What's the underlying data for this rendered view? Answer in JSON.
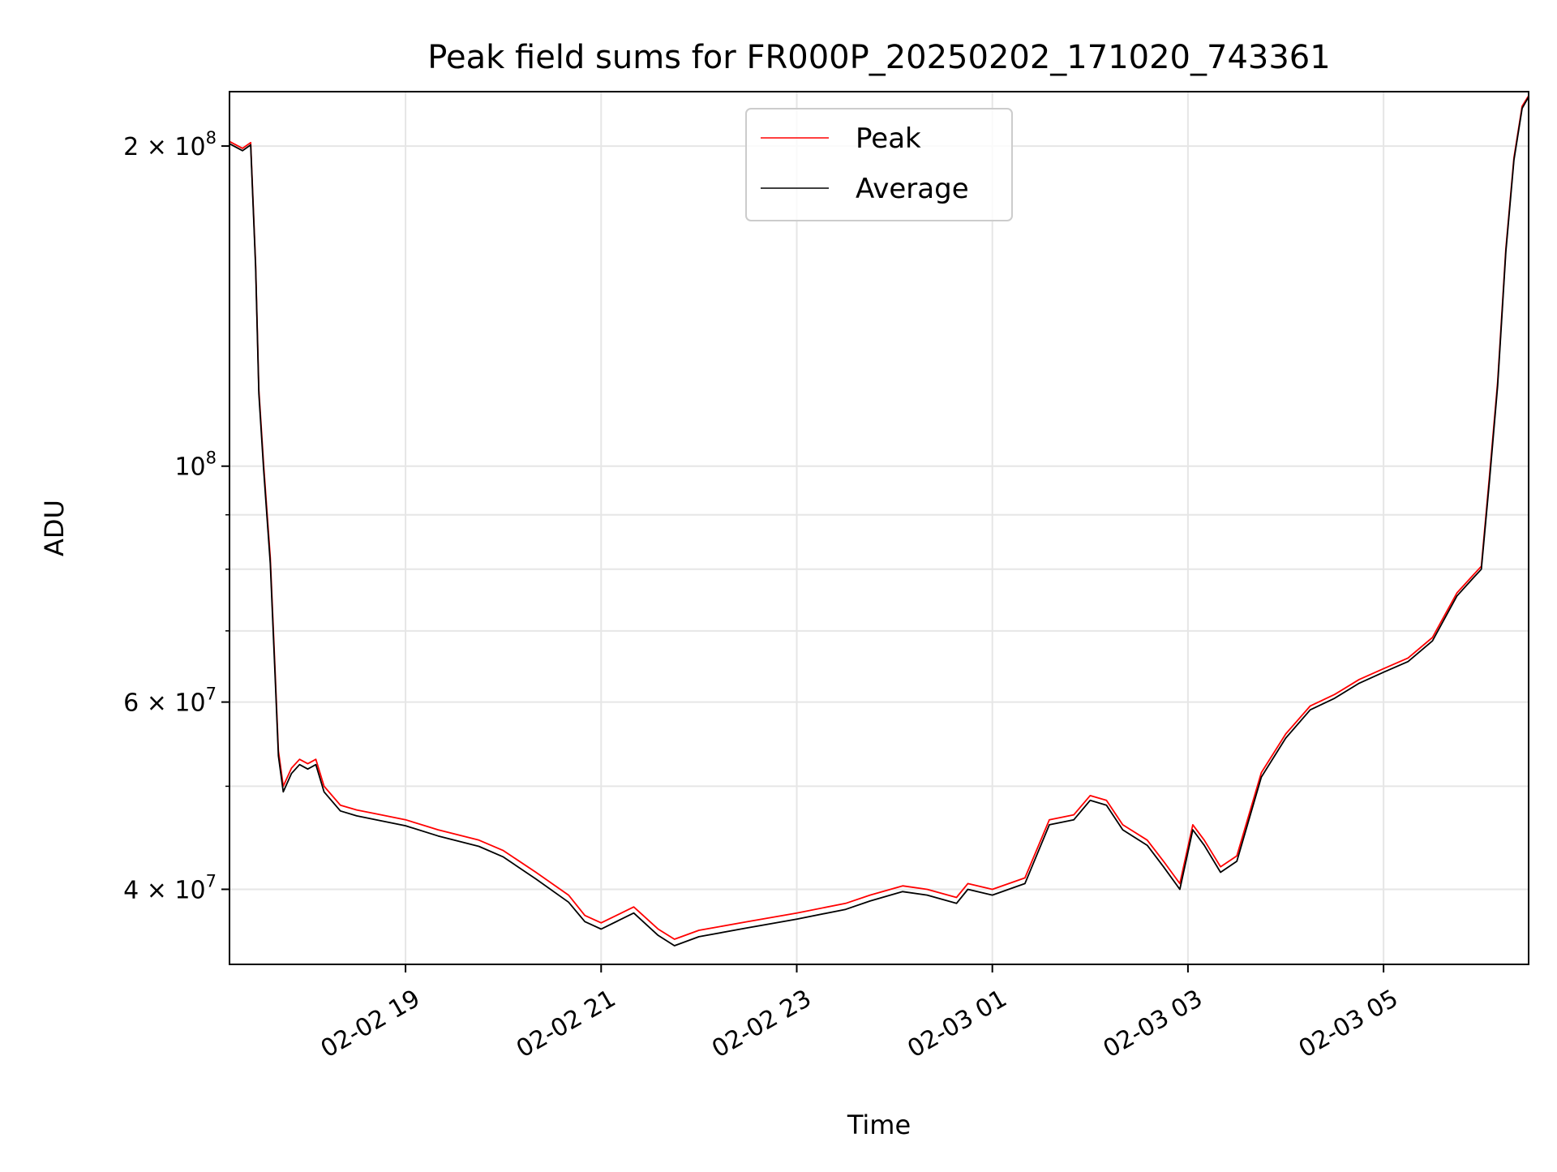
{
  "chart_data": {
    "type": "line",
    "title": "Peak field sums for FR000P_20250202_171020_743361",
    "xlabel": "Time",
    "ylabel": "ADU",
    "x_axis": {
      "kind": "datetime",
      "range": [
        "2025-02-02 17:12",
        "2025-02-03 06:29"
      ],
      "ticks": [
        {
          "value": "2025-02-02 19:00",
          "label": "02-02 19"
        },
        {
          "value": "2025-02-02 21:00",
          "label": "02-02 21"
        },
        {
          "value": "2025-02-02 23:00",
          "label": "02-02 23"
        },
        {
          "value": "2025-02-03 01:00",
          "label": "02-03 01"
        },
        {
          "value": "2025-02-03 03:00",
          "label": "02-03 03"
        },
        {
          "value": "2025-02-03 05:00",
          "label": "02-03 05"
        }
      ]
    },
    "y_axis": {
      "scale": "log",
      "range": [
        34000000,
        225000000
      ],
      "major_ticks": [
        {
          "value": 40000000,
          "label_base": "4 × 10",
          "label_exp": "7"
        },
        {
          "value": 60000000,
          "label_base": "6 × 10",
          "label_exp": "7"
        },
        {
          "value": 100000000,
          "label_base": "10",
          "label_exp": "8"
        },
        {
          "value": 200000000,
          "label_base": "2 × 10",
          "label_exp": "8"
        }
      ],
      "minor_ticks": [
        50000000,
        70000000,
        80000000,
        90000000
      ]
    },
    "grid": true,
    "legend": {
      "placement": "upper-center"
    },
    "x": [
      "2025-02-02 17:12",
      "2025-02-02 17:20",
      "2025-02-02 17:25",
      "2025-02-02 17:28",
      "2025-02-02 17:30",
      "2025-02-02 17:33",
      "2025-02-02 17:37",
      "2025-02-02 17:40",
      "2025-02-02 17:42",
      "2025-02-02 17:45",
      "2025-02-02 17:50",
      "2025-02-02 17:55",
      "2025-02-02 18:00",
      "2025-02-02 18:05",
      "2025-02-02 18:10",
      "2025-02-02 18:20",
      "2025-02-02 18:30",
      "2025-02-02 18:45",
      "2025-02-02 19:00",
      "2025-02-02 19:20",
      "2025-02-02 19:45",
      "2025-02-02 20:00",
      "2025-02-02 20:20",
      "2025-02-02 20:40",
      "2025-02-02 20:50",
      "2025-02-02 21:00",
      "2025-02-02 21:20",
      "2025-02-02 21:35",
      "2025-02-02 21:45",
      "2025-02-02 22:00",
      "2025-02-02 22:30",
      "2025-02-02 23:00",
      "2025-02-02 23:30",
      "2025-02-02 23:45",
      "2025-02-03 00:05",
      "2025-02-03 00:20",
      "2025-02-03 00:38",
      "2025-02-03 00:45",
      "2025-02-03 01:00",
      "2025-02-03 01:20",
      "2025-02-03 01:35",
      "2025-02-03 01:50",
      "2025-02-03 02:00",
      "2025-02-03 02:10",
      "2025-02-03 02:20",
      "2025-02-03 02:35",
      "2025-02-03 02:45",
      "2025-02-03 02:55",
      "2025-02-03 03:03",
      "2025-02-03 03:10",
      "2025-02-03 03:20",
      "2025-02-03 03:30",
      "2025-02-03 03:45",
      "2025-02-03 04:00",
      "2025-02-03 04:15",
      "2025-02-03 04:30",
      "2025-02-03 04:45",
      "2025-02-03 05:00",
      "2025-02-03 05:15",
      "2025-02-03 05:30",
      "2025-02-03 05:45",
      "2025-02-03 05:55",
      "2025-02-03 06:00",
      "2025-02-03 06:05",
      "2025-02-03 06:10",
      "2025-02-03 06:15",
      "2025-02-03 06:20",
      "2025-02-03 06:25",
      "2025-02-03 06:29"
    ],
    "series": [
      {
        "name": "Peak",
        "color": "#ff0000",
        "values": [
          202000000,
          199000000,
          201500000,
          155000000,
          118000000,
          100000000,
          82000000,
          64000000,
          54000000,
          50000000,
          52000000,
          53000000,
          52500000,
          53000000,
          50000000,
          48000000,
          47500000,
          47000000,
          46500000,
          45500000,
          44500000,
          43500000,
          41500000,
          39500000,
          37800000,
          37200000,
          38500000,
          36700000,
          35900000,
          36600000,
          37300000,
          38000000,
          38800000,
          39500000,
          40300000,
          40000000,
          39300000,
          40500000,
          40000000,
          41000000,
          46500000,
          47000000,
          49000000,
          48500000,
          46000000,
          44500000,
          42500000,
          40500000,
          46000000,
          44500000,
          42000000,
          43000000,
          51500000,
          56000000,
          59500000,
          61000000,
          63000000,
          64500000,
          66000000,
          69000000,
          76000000,
          79000000,
          80500000,
          98000000,
          120000000,
          160000000,
          195000000,
          218000000,
          223000000
        ]
      },
      {
        "name": "Average",
        "color": "#000000",
        "values": [
          201000000,
          198000000,
          200500000,
          154000000,
          117000000,
          99000000,
          81000000,
          63300000,
          53400000,
          49400000,
          51400000,
          52400000,
          51900000,
          52400000,
          49400000,
          47400000,
          46900000,
          46400000,
          45900000,
          44900000,
          43900000,
          42900000,
          40900000,
          38900000,
          37300000,
          36700000,
          38000000,
          36200000,
          35400000,
          36100000,
          36800000,
          37500000,
          38300000,
          39000000,
          39800000,
          39500000,
          38800000,
          40000000,
          39500000,
          40500000,
          46000000,
          46500000,
          48500000,
          48000000,
          45500000,
          44000000,
          42000000,
          40000000,
          45500000,
          44000000,
          41500000,
          42500000,
          51000000,
          55500000,
          59000000,
          60500000,
          62500000,
          64000000,
          65500000,
          68500000,
          75500000,
          78500000,
          80000000,
          97000000,
          119000000,
          159000000,
          194000000,
          217000000,
          222500000
        ]
      }
    ]
  }
}
